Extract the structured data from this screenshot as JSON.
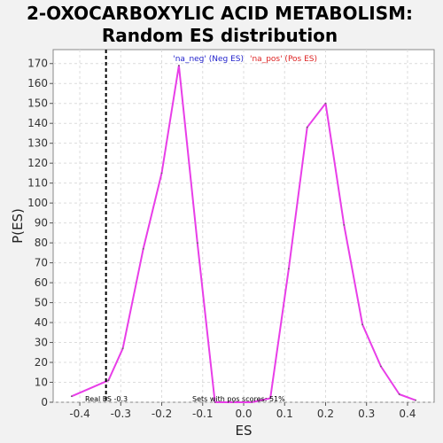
{
  "chart_data": {
    "type": "line",
    "title": "2-OXOCARBOXYLIC ACID METABOLISM:",
    "subtitle": "Random ES distribution",
    "xlabel": "ES",
    "ylabel": "P(ES)",
    "xlim": [
      -0.465,
      0.465
    ],
    "ylim": [
      0,
      177
    ],
    "x_ticks": [
      "-0.4",
      "-0.3",
      "-0.2",
      "-0.1",
      "0.0",
      "0.1",
      "0.2",
      "0.3",
      "0.4"
    ],
    "x_tick_values": [
      -0.4,
      -0.3,
      -0.2,
      -0.1,
      0.0,
      0.1,
      0.2,
      0.3,
      0.4
    ],
    "y_ticks": [
      "0",
      "10",
      "20",
      "30",
      "40",
      "50",
      "60",
      "70",
      "80",
      "90",
      "100",
      "110",
      "120",
      "130",
      "140",
      "150",
      "160",
      "170"
    ],
    "y_tick_values": [
      0,
      10,
      20,
      30,
      40,
      50,
      60,
      70,
      80,
      90,
      100,
      110,
      120,
      130,
      140,
      150,
      160,
      170
    ],
    "grid": true,
    "series": [
      {
        "color": "#e83ee8",
        "x": [
          -0.42,
          -0.33,
          -0.295,
          -0.245,
          -0.2,
          -0.158,
          -0.113,
          -0.07,
          -0.025,
          0.02,
          0.065,
          0.11,
          0.155,
          0.2,
          0.245,
          0.29,
          0.335,
          0.38,
          0.42
        ],
        "y": [
          3,
          11,
          27,
          77,
          115,
          169,
          80,
          0,
          0,
          0,
          2,
          67,
          138,
          150,
          89,
          39,
          18,
          4,
          1
        ]
      }
    ],
    "legend": [
      {
        "label": "'na_neg' (Neg ES)",
        "color": "#2222cc"
      },
      {
        "label": "'na_pos' (Pos ES)",
        "color": "#dd2222"
      }
    ],
    "legend_placement": "top-center",
    "real_es": {
      "value": -0.336,
      "label": "Real ES -0.3"
    },
    "annotation": "Sets with pos scores: 51%"
  }
}
